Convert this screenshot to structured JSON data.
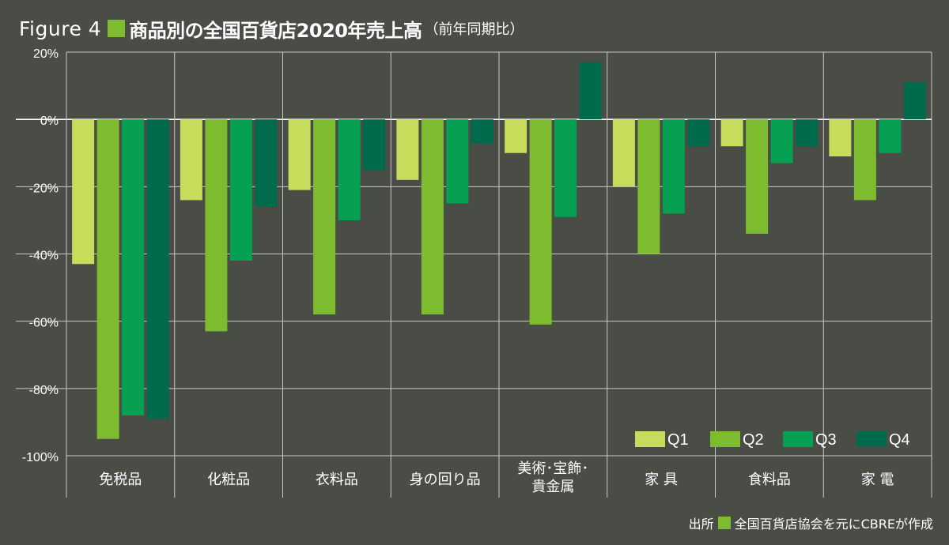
{
  "figure": {
    "label": "Figure 4",
    "title": "商品別の全国百貨店2020年売上高",
    "subtitle": "（前年同期比）",
    "title_marker_color": "#7cbc2e"
  },
  "source": {
    "prefix": "出所",
    "text": "全国百貨店協会を元にCBREが作成",
    "marker_color": "#7cbc2e"
  },
  "chart_data": {
    "type": "bar",
    "title": "商品別の全国百貨店2020年売上高（前年同期比）",
    "categories": [
      [
        "免税品"
      ],
      [
        "化粧品"
      ],
      [
        "衣料品"
      ],
      [
        "身の回り品"
      ],
      [
        "美術･宝飾･",
        "貴金属"
      ],
      [
        "家 具"
      ],
      [
        "食料品"
      ],
      [
        "家 電"
      ]
    ],
    "series": [
      {
        "name": "Q1",
        "color": "#c5dd5b",
        "values": [
          -43,
          -24,
          -21,
          -18,
          -10,
          -20,
          -8,
          -11
        ]
      },
      {
        "name": "Q2",
        "color": "#7cbc2e",
        "values": [
          -95,
          -63,
          -58,
          -58,
          -61,
          -40,
          -34,
          -24
        ]
      },
      {
        "name": "Q3",
        "color": "#06a052",
        "values": [
          -88,
          -42,
          -30,
          -25,
          -29,
          -28,
          -13,
          -10
        ]
      },
      {
        "name": "Q4",
        "color": "#006b4c",
        "values": [
          -89,
          -26,
          -15,
          -7,
          17,
          -8,
          -8,
          11
        ]
      }
    ],
    "y_ticks": [
      20,
      0,
      -20,
      -40,
      -60,
      -80,
      -100
    ],
    "y_tick_labels": [
      "20%",
      "0%",
      "-20%",
      "-40%",
      "-60%",
      "-80%",
      "-100%"
    ],
    "ylim": [
      -100,
      20
    ],
    "xlabel": "",
    "ylabel": "",
    "legend": "bottom-right",
    "grid": true
  }
}
